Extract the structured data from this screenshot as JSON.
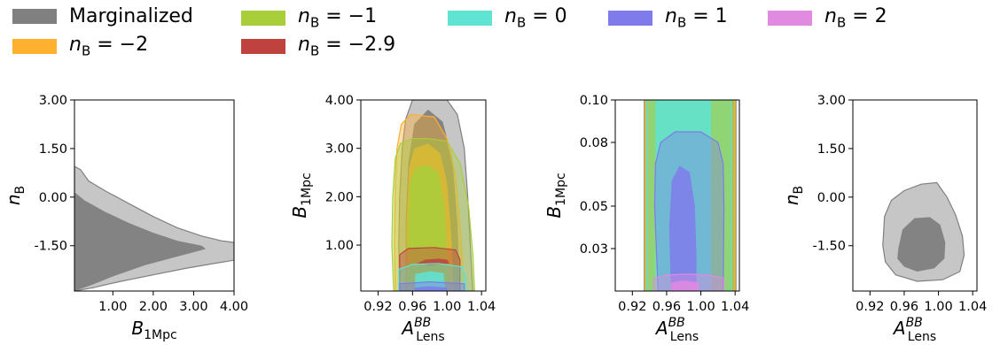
{
  "legend": [
    {
      "label": "Marginalized",
      "color": "#808080"
    },
    {
      "label": "n_B = −2",
      "color": "#FFB02E"
    },
    {
      "label": "n_B = −1",
      "color": "#A8CE3A"
    },
    {
      "label": "n_B = −2.9",
      "color": "#C0423E"
    },
    {
      "label": "n_B = 0",
      "color": "#5FE3D3"
    },
    {
      "label": "n_B = 1",
      "color": "#7F7BEB"
    },
    {
      "label": "n_B = 2",
      "color": "#E08AE0"
    }
  ],
  "chart_data": [
    {
      "type": "contour",
      "xlabel": "B_1Mpc",
      "ylabel": "n_B",
      "xlim": [
        0.05,
        4.0
      ],
      "ylim": [
        -2.9,
        3.0
      ],
      "xticks": [
        "1.00",
        "2.00",
        "3.00",
        "4.00"
      ],
      "yticks": [
        "-1.50",
        "0.00",
        "1.50",
        "3.00"
      ],
      "series": [
        {
          "color": "#808080",
          "outer": [
            [
              0.05,
              0.95
            ],
            [
              0.2,
              0.85
            ],
            [
              0.4,
              0.5
            ],
            [
              0.8,
              0.2
            ],
            [
              1.4,
              -0.2
            ],
            [
              2.0,
              -0.6
            ],
            [
              2.6,
              -0.95
            ],
            [
              3.2,
              -1.2
            ],
            [
              3.7,
              -1.35
            ],
            [
              4.0,
              -1.4
            ],
            [
              4.0,
              -1.95
            ],
            [
              3.5,
              -2.05
            ],
            [
              2.8,
              -2.2
            ],
            [
              2.0,
              -2.4
            ],
            [
              1.2,
              -2.6
            ],
            [
              0.5,
              -2.8
            ],
            [
              0.05,
              -2.9
            ]
          ],
          "inner": [
            [
              0.05,
              0.15
            ],
            [
              0.3,
              -0.1
            ],
            [
              0.8,
              -0.45
            ],
            [
              1.4,
              -0.8
            ],
            [
              2.0,
              -1.1
            ],
            [
              2.6,
              -1.35
            ],
            [
              3.2,
              -1.5
            ],
            [
              3.3,
              -1.6
            ],
            [
              3.0,
              -1.7
            ],
            [
              2.4,
              -1.9
            ],
            [
              1.8,
              -2.1
            ],
            [
              1.0,
              -2.45
            ],
            [
              0.5,
              -2.7
            ],
            [
              0.05,
              -2.9
            ]
          ]
        }
      ]
    },
    {
      "type": "contour",
      "xlabel": "A_Lens^BB",
      "ylabel": "B_1Mpc",
      "xlim": [
        0.9,
        1.045
      ],
      "ylim": [
        0.05,
        4.0
      ],
      "xticks": [
        "0.92",
        "0.96",
        "1.00",
        "1.04"
      ],
      "yticks": [
        "1.00",
        "2.00",
        "3.00",
        "4.00"
      ],
      "series": [
        {
          "color": "#808080",
          "outer": [
            [
              0.945,
              0.05
            ],
            [
              0.944,
              1.0
            ],
            [
              0.945,
              2.0
            ],
            [
              0.948,
              3.0
            ],
            [
              0.952,
              3.6
            ],
            [
              0.96,
              4.0
            ],
            [
              1.0,
              4.0
            ],
            [
              1.012,
              3.7
            ],
            [
              1.02,
              3.0
            ],
            [
              1.024,
              2.0
            ],
            [
              1.027,
              1.0
            ],
            [
              1.03,
              0.05
            ]
          ],
          "inner": [
            [
              0.952,
              0.05
            ],
            [
              0.952,
              1.5
            ],
            [
              0.955,
              2.7
            ],
            [
              0.962,
              3.5
            ],
            [
              0.978,
              3.8
            ],
            [
              0.995,
              3.55
            ],
            [
              1.006,
              2.8
            ],
            [
              1.012,
              1.5
            ],
            [
              1.015,
              0.05
            ]
          ]
        },
        {
          "color": "#FFB02E",
          "outer": [
            [
              0.94,
              0.05
            ],
            [
              0.939,
              1.0
            ],
            [
              0.94,
              2.2
            ],
            [
              0.942,
              3.0
            ],
            [
              0.947,
              3.5
            ],
            [
              0.958,
              3.7
            ],
            [
              0.985,
              3.65
            ],
            [
              1.0,
              3.2
            ],
            [
              1.01,
              2.4
            ],
            [
              1.016,
              1.2
            ],
            [
              1.02,
              0.05
            ]
          ],
          "inner": [
            [
              0.953,
              0.05
            ],
            [
              0.953,
              1.5
            ],
            [
              0.956,
              2.6
            ],
            [
              0.962,
              3.0
            ],
            [
              0.978,
              3.1
            ],
            [
              0.992,
              2.9
            ],
            [
              1.0,
              2.3
            ],
            [
              1.005,
              1.2
            ],
            [
              1.008,
              0.05
            ]
          ]
        },
        {
          "color": "#A8CE3A",
          "outer": [
            [
              0.938,
              0.05
            ],
            [
              0.936,
              1.0
            ],
            [
              0.937,
              2.0
            ],
            [
              0.94,
              2.8
            ],
            [
              0.946,
              3.1
            ],
            [
              0.96,
              3.2
            ],
            [
              0.978,
              3.2
            ],
            [
              1.0,
              3.15
            ],
            [
              1.015,
              2.7
            ],
            [
              1.025,
              1.8
            ],
            [
              1.03,
              0.8
            ],
            [
              1.032,
              0.05
            ]
          ],
          "inner": [
            [
              0.955,
              0.05
            ],
            [
              0.955,
              1.5
            ],
            [
              0.957,
              2.3
            ],
            [
              0.963,
              2.6
            ],
            [
              0.978,
              2.65
            ],
            [
              0.99,
              2.5
            ],
            [
              0.997,
              1.8
            ],
            [
              1.0,
              0.9
            ],
            [
              1.002,
              0.05
            ]
          ]
        },
        {
          "color": "#C0423E",
          "outer": [
            [
              0.945,
              0.05
            ],
            [
              0.945,
              0.8
            ],
            [
              0.955,
              0.93
            ],
            [
              0.985,
              0.95
            ],
            [
              1.01,
              0.9
            ],
            [
              1.015,
              0.7
            ],
            [
              1.015,
              0.05
            ]
          ],
          "inner": [
            [
              0.965,
              0.62
            ],
            [
              0.975,
              0.7
            ],
            [
              0.99,
              0.72
            ],
            [
              1.0,
              0.7
            ],
            [
              1.003,
              0.62
            ],
            [
              0.98,
              0.58
            ]
          ]
        },
        {
          "color": "#5FE3D3",
          "outer": [
            [
              0.944,
              0.05
            ],
            [
              0.944,
              0.5
            ],
            [
              0.96,
              0.6
            ],
            [
              0.99,
              0.62
            ],
            [
              1.018,
              0.55
            ],
            [
              1.022,
              0.3
            ],
            [
              1.022,
              0.05
            ]
          ],
          "inner": [
            [
              0.963,
              0.05
            ],
            [
              0.963,
              0.4
            ],
            [
              0.98,
              0.46
            ],
            [
              0.996,
              0.42
            ],
            [
              0.998,
              0.05
            ]
          ]
        },
        {
          "color": "#7F7BEB",
          "outer": [
            [
              0.945,
              0.05
            ],
            [
              0.945,
              0.2
            ],
            [
              0.98,
              0.24
            ],
            [
              1.02,
              0.2
            ],
            [
              1.02,
              0.05
            ]
          ],
          "inner": [
            [
              0.962,
              0.05
            ],
            [
              0.962,
              0.12
            ],
            [
              0.98,
              0.15
            ],
            [
              1.0,
              0.12
            ],
            [
              1.0,
              0.05
            ]
          ]
        }
      ]
    },
    {
      "type": "contour",
      "xlabel": "A_Lens^BB",
      "ylabel": "B_1Mpc",
      "xlim": [
        0.9,
        1.045
      ],
      "ylim": [
        0.01,
        0.1
      ],
      "xticks": [
        "0.92",
        "0.96",
        "1.00",
        "1.04"
      ],
      "yticks": [
        "0.03",
        "0.05",
        "0.08",
        "0.10"
      ],
      "series": [
        {
          "color": "#808080",
          "outer": [
            [
              0.934,
              0.01
            ],
            [
              0.934,
              0.1
            ],
            [
              1.041,
              0.1
            ],
            [
              1.041,
              0.01
            ]
          ],
          "inner": [
            [
              0.937,
              0.01
            ],
            [
              0.937,
              0.1
            ],
            [
              1.038,
              0.1
            ],
            [
              1.038,
              0.01
            ]
          ]
        },
        {
          "color": "#FFB02E",
          "outer": [
            [
              0.935,
              0.01
            ],
            [
              0.935,
              0.1
            ],
            [
              1.04,
              0.1
            ],
            [
              1.04,
              0.01
            ]
          ],
          "inner": [
            [
              0.938,
              0.01
            ],
            [
              0.938,
              0.1
            ],
            [
              1.037,
              0.1
            ],
            [
              1.037,
              0.01
            ]
          ]
        },
        {
          "color": "#A8CE3A",
          "outer": [
            [
              0.936,
              0.01
            ],
            [
              0.936,
              0.1
            ],
            [
              1.039,
              0.1
            ],
            [
              1.039,
              0.01
            ]
          ],
          "inner": [
            [
              0.94,
              0.01
            ],
            [
              0.94,
              0.1
            ],
            [
              1.035,
              0.1
            ],
            [
              1.035,
              0.01
            ]
          ]
        },
        {
          "color": "#5FE3D3",
          "outer": [
            [
              0.937,
              0.01
            ],
            [
              0.937,
              0.1
            ],
            [
              1.036,
              0.1
            ],
            [
              1.036,
              0.01
            ]
          ],
          "inner": [
            [
              0.947,
              0.01
            ],
            [
              0.947,
              0.1
            ],
            [
              1.012,
              0.1
            ],
            [
              1.012,
              0.01
            ]
          ]
        },
        {
          "color": "#7F7BEB",
          "outer": [
            [
              0.95,
              0.01
            ],
            [
              0.946,
              0.05
            ],
            [
              0.947,
              0.07
            ],
            [
              0.953,
              0.08
            ],
            [
              0.97,
              0.085
            ],
            [
              1.0,
              0.085
            ],
            [
              1.02,
              0.08
            ],
            [
              1.026,
              0.07
            ],
            [
              1.027,
              0.05
            ],
            [
              1.026,
              0.01
            ]
          ],
          "inner": [
            [
              0.965,
              0.01
            ],
            [
              0.963,
              0.04
            ],
            [
              0.966,
              0.062
            ],
            [
              0.975,
              0.069
            ],
            [
              0.987,
              0.066
            ],
            [
              0.993,
              0.05
            ],
            [
              0.995,
              0.025
            ],
            [
              0.995,
              0.01
            ]
          ]
        },
        {
          "color": "#E08AE0",
          "outer": [
            [
              0.945,
              0.01
            ],
            [
              0.945,
              0.016
            ],
            [
              0.96,
              0.0175
            ],
            [
              0.985,
              0.018
            ],
            [
              1.01,
              0.0175
            ],
            [
              1.027,
              0.016
            ],
            [
              1.027,
              0.01
            ]
          ],
          "inner": [
            [
              0.965,
              0.01
            ],
            [
              0.965,
              0.014
            ],
            [
              0.98,
              0.015
            ],
            [
              0.998,
              0.014
            ],
            [
              0.998,
              0.01
            ]
          ]
        }
      ]
    },
    {
      "type": "contour",
      "xlabel": "A_Lens^BB",
      "ylabel": "n_B",
      "xlim": [
        0.9,
        1.045
      ],
      "ylim": [
        -2.9,
        3.0
      ],
      "xticks": [
        "0.92",
        "0.96",
        "1.00",
        "1.04"
      ],
      "yticks": [
        "-1.50",
        "0.00",
        "1.50",
        "3.00"
      ],
      "series": [
        {
          "color": "#808080",
          "outer": [
            [
              0.935,
              -1.5
            ],
            [
              0.937,
              -0.6
            ],
            [
              0.945,
              -0.1
            ],
            [
              0.96,
              0.2
            ],
            [
              0.98,
              0.4
            ],
            [
              0.998,
              0.45
            ],
            [
              1.01,
              0.0
            ],
            [
              1.02,
              -0.55
            ],
            [
              1.028,
              -1.2
            ],
            [
              1.03,
              -1.8
            ],
            [
              1.025,
              -2.3
            ],
            [
              1.005,
              -2.55
            ],
            [
              0.975,
              -2.6
            ],
            [
              0.95,
              -2.4
            ],
            [
              0.938,
              -2.0
            ]
          ],
          "inner": [
            [
              0.953,
              -1.6
            ],
            [
              0.958,
              -1.0
            ],
            [
              0.972,
              -0.65
            ],
            [
              0.99,
              -0.62
            ],
            [
              1.002,
              -0.85
            ],
            [
              1.008,
              -1.4
            ],
            [
              1.007,
              -1.9
            ],
            [
              0.995,
              -2.2
            ],
            [
              0.975,
              -2.3
            ],
            [
              0.96,
              -2.15
            ],
            [
              0.952,
              -1.9
            ]
          ]
        }
      ]
    }
  ]
}
